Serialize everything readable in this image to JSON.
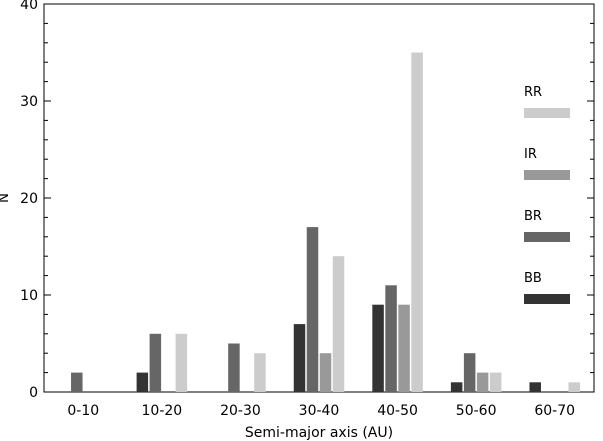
{
  "chart_data": {
    "type": "bar",
    "title": "",
    "xlabel": "Semi-major axis (AU)",
    "ylabel": "N",
    "ylim": [
      0,
      40
    ],
    "yticks": [
      0,
      10,
      20,
      30,
      40
    ],
    "categories": [
      "0-10",
      "10-20",
      "20-30",
      "30-40",
      "40-50",
      "50-60",
      "60-70"
    ],
    "series": [
      {
        "name": "BB",
        "color": "#333333",
        "values": [
          0,
          2,
          0,
          7,
          9,
          1,
          1
        ]
      },
      {
        "name": "BR",
        "color": "#666666",
        "values": [
          2,
          6,
          5,
          17,
          11,
          4,
          0
        ]
      },
      {
        "name": "IR",
        "color": "#999999",
        "values": [
          0,
          0,
          0,
          4,
          9,
          2,
          0
        ]
      },
      {
        "name": "RR",
        "color": "#cccccc",
        "values": [
          0,
          6,
          4,
          14,
          35,
          2,
          1
        ]
      }
    ],
    "legend": {
      "placement": "right",
      "order": [
        "RR",
        "IR",
        "BR",
        "BB"
      ]
    },
    "grid": false
  }
}
